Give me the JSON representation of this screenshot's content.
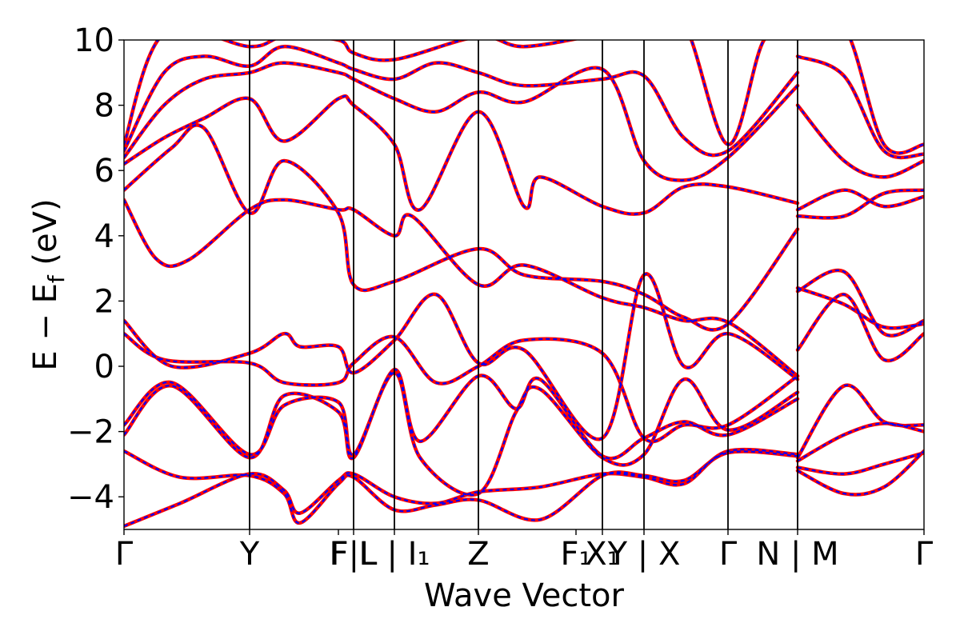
{
  "chart_data": {
    "type": "line",
    "title": "",
    "xlabel": "Wave Vector",
    "ylabel": "E − E_f (eV)",
    "ylabel_parts": {
      "main": "E  −  E",
      "sub": "f",
      "unit": " (eV)"
    },
    "ylim": [
      -5,
      10
    ],
    "xlim": [
      0,
      1
    ],
    "grid": false,
    "legend": "none",
    "y_ticks": [
      -4,
      -2,
      0,
      2,
      4,
      6,
      8,
      10
    ],
    "y_tick_labels": [
      "−4",
      "−2",
      "0",
      "2",
      "4",
      "6",
      "8",
      "10"
    ],
    "high_symmetry_points": [
      {
        "label": "Γ",
        "x": 0.0
      },
      {
        "label": "Y",
        "x": 0.157
      },
      {
        "label": "F",
        "x": 0.268
      },
      {
        "label": "F|L",
        "x": 0.287
      },
      {
        "label": "L | I₁",
        "x": 0.338
      },
      {
        "label": "Z",
        "x": 0.443
      },
      {
        "label": "F₁",
        "x": 0.565
      },
      {
        "label": "X₁",
        "x": 0.598
      },
      {
        "label": "Y | X",
        "x": 0.65
      },
      {
        "label": "Γ",
        "x": 0.755
      },
      {
        "label": "N | M",
        "x": 0.842
      },
      {
        "label": "Γ",
        "x": 1.0
      }
    ],
    "vertical_lines": [
      0.157,
      0.287,
      0.338,
      0.443,
      0.598,
      0.65,
      0.755,
      0.842
    ],
    "colors": {
      "series_a": "#ff0000",
      "series_b": "#0000ff"
    },
    "series": [
      {
        "line_style": "solid",
        "color": "#ff0000",
        "bands": [
          [
            [
              0,
              -4.9
            ],
            [
              0.07,
              -4.2
            ],
            [
              0.157,
              -3.3
            ],
            [
              0.2,
              -3.8
            ],
            [
              0.22,
              -4.5
            ],
            [
              0.268,
              -3.5
            ],
            [
              0.287,
              -3.3
            ],
            [
              0.338,
              -4.0
            ],
            [
              0.39,
              -4.2
            ],
            [
              0.443,
              -3.85
            ],
            [
              0.52,
              -3.7
            ],
            [
              0.598,
              -3.3
            ],
            [
              0.65,
              -3.4
            ],
            [
              0.7,
              -3.6
            ],
            [
              0.755,
              -2.6
            ],
            [
              0.842,
              -2.7
            ],
            [
              0.842,
              -3.2
            ],
            [
              0.9,
              -3.9
            ],
            [
              0.95,
              -3.7
            ],
            [
              1.0,
              -2.6
            ]
          ],
          [
            [
              0,
              -2.6
            ],
            [
              0.07,
              -3.4
            ],
            [
              0.157,
              -3.35
            ],
            [
              0.2,
              -3.9
            ],
            [
              0.22,
              -4.8
            ],
            [
              0.268,
              -3.6
            ],
            [
              0.287,
              -3.4
            ],
            [
              0.338,
              -4.4
            ],
            [
              0.39,
              -4.25
            ],
            [
              0.443,
              -4.1
            ],
            [
              0.52,
              -4.7
            ],
            [
              0.598,
              -3.35
            ],
            [
              0.65,
              -3.35
            ],
            [
              0.7,
              -3.5
            ],
            [
              0.755,
              -2.65
            ],
            [
              0.842,
              -2.75
            ],
            [
              0.842,
              -3.1
            ],
            [
              0.9,
              -3.3
            ],
            [
              0.95,
              -3.0
            ],
            [
              1.0,
              -2.65
            ]
          ],
          [
            [
              0,
              -2.1
            ],
            [
              0.06,
              -0.6
            ],
            [
              0.157,
              -2.8
            ],
            [
              0.2,
              -0.9
            ],
            [
              0.268,
              -1.4
            ],
            [
              0.287,
              -2.8
            ],
            [
              0.338,
              -0.1
            ],
            [
              0.37,
              -2.3
            ],
            [
              0.443,
              -0.3
            ],
            [
              0.49,
              -1.3
            ],
            [
              0.52,
              -0.4
            ],
            [
              0.598,
              -2.75
            ],
            [
              0.65,
              -2.2
            ],
            [
              0.7,
              -1.7
            ],
            [
              0.755,
              -2.1
            ],
            [
              0.842,
              -1.0
            ],
            [
              0.842,
              -2.9
            ],
            [
              0.9,
              -2.1
            ],
            [
              0.95,
              -1.75
            ],
            [
              1.0,
              -2.0
            ]
          ],
          [
            [
              0,
              -1.8
            ],
            [
              0.06,
              -0.5
            ],
            [
              0.157,
              -2.7
            ],
            [
              0.2,
              -1.2
            ],
            [
              0.268,
              -1.1
            ],
            [
              0.287,
              -2.7
            ],
            [
              0.338,
              -0.2
            ],
            [
              0.37,
              -2.8
            ],
            [
              0.443,
              -3.9
            ],
            [
              0.49,
              -1.4
            ],
            [
              0.52,
              -0.7
            ],
            [
              0.598,
              -2.8
            ],
            [
              0.65,
              -2.7
            ],
            [
              0.7,
              -0.4
            ],
            [
              0.755,
              -1.95
            ],
            [
              0.842,
              -0.8
            ],
            [
              0.842,
              -2.8
            ],
            [
              0.9,
              -0.6
            ],
            [
              0.95,
              -1.7
            ],
            [
              1.0,
              -1.8
            ]
          ],
          [
            [
              0,
              1.0
            ],
            [
              0.05,
              0.2
            ],
            [
              0.157,
              0.1
            ],
            [
              0.2,
              -0.5
            ],
            [
              0.268,
              -0.5
            ],
            [
              0.287,
              0.1
            ],
            [
              0.338,
              0.9
            ],
            [
              0.39,
              -0.5
            ],
            [
              0.443,
              0.0
            ],
            [
              0.5,
              0.8
            ],
            [
              0.598,
              0.4
            ],
            [
              0.65,
              -2.2
            ],
            [
              0.7,
              -1.8
            ],
            [
              0.755,
              -1.8
            ],
            [
              0.842,
              -0.3
            ],
            [
              0.842,
              0.5
            ],
            [
              0.9,
              2.2
            ],
            [
              0.95,
              0.2
            ],
            [
              1.0,
              1.0
            ]
          ],
          [
            [
              0,
              1.4
            ],
            [
              0.06,
              0.0
            ],
            [
              0.157,
              0.4
            ],
            [
              0.2,
              1.0
            ],
            [
              0.22,
              0.6
            ],
            [
              0.268,
              0.6
            ],
            [
              0.287,
              -0.2
            ],
            [
              0.338,
              0.8
            ],
            [
              0.39,
              2.2
            ],
            [
              0.443,
              0.1
            ],
            [
              0.5,
              0.5
            ],
            [
              0.598,
              -2.2
            ],
            [
              0.65,
              2.8
            ],
            [
              0.7,
              0.0
            ],
            [
              0.755,
              1.0
            ],
            [
              0.842,
              -0.4
            ],
            [
              0.842,
              2.3
            ],
            [
              0.9,
              2.9
            ],
            [
              0.95,
              1.0
            ],
            [
              1.0,
              1.4
            ]
          ],
          [
            [
              0,
              5.1
            ],
            [
              0.04,
              3.3
            ],
            [
              0.08,
              3.25
            ],
            [
              0.157,
              4.8
            ],
            [
              0.2,
              5.1
            ],
            [
              0.268,
              4.8
            ],
            [
              0.287,
              4.8
            ],
            [
              0.338,
              4.0
            ],
            [
              0.36,
              4.6
            ],
            [
              0.443,
              2.5
            ],
            [
              0.5,
              3.1
            ],
            [
              0.598,
              2.1
            ],
            [
              0.65,
              1.8
            ],
            [
              0.7,
              1.4
            ],
            [
              0.755,
              1.35
            ],
            [
              0.842,
              -0.3
            ],
            [
              0.842,
              2.4
            ],
            [
              0.9,
              1.9
            ],
            [
              0.95,
              1.2
            ],
            [
              1.0,
              1.3
            ]
          ],
          [
            [
              0,
              5.4
            ],
            [
              0.06,
              6.7
            ],
            [
              0.1,
              7.3
            ],
            [
              0.157,
              4.7
            ],
            [
              0.2,
              6.3
            ],
            [
              0.268,
              4.7
            ],
            [
              0.287,
              2.5
            ],
            [
              0.338,
              2.6
            ],
            [
              0.443,
              3.6
            ],
            [
              0.5,
              2.8
            ],
            [
              0.598,
              2.6
            ],
            [
              0.65,
              2.2
            ],
            [
              0.7,
              1.5
            ],
            [
              0.755,
              1.3
            ],
            [
              0.842,
              4.2
            ],
            [
              0.842,
              4.8
            ],
            [
              0.9,
              5.4
            ],
            [
              0.95,
              4.9
            ],
            [
              1.0,
              5.2
            ]
          ],
          [
            [
              0,
              6.2
            ],
            [
              0.05,
              7.0
            ],
            [
              0.1,
              7.6
            ],
            [
              0.157,
              8.2
            ],
            [
              0.2,
              6.9
            ],
            [
              0.268,
              8.2
            ],
            [
              0.287,
              8.0
            ],
            [
              0.338,
              6.8
            ],
            [
              0.37,
              4.8
            ],
            [
              0.443,
              7.8
            ],
            [
              0.5,
              4.9
            ],
            [
              0.52,
              5.8
            ],
            [
              0.598,
              4.9
            ],
            [
              0.65,
              4.7
            ],
            [
              0.7,
              5.5
            ],
            [
              0.755,
              5.5
            ],
            [
              0.842,
              5.0
            ],
            [
              0.842,
              4.6
            ],
            [
              0.9,
              4.6
            ],
            [
              0.95,
              5.3
            ],
            [
              1.0,
              5.4
            ]
          ],
          [
            [
              0,
              6.4
            ],
            [
              0.05,
              8.0
            ],
            [
              0.1,
              8.8
            ],
            [
              0.157,
              9.0
            ],
            [
              0.2,
              9.3
            ],
            [
              0.268,
              9.0
            ],
            [
              0.287,
              8.8
            ],
            [
              0.338,
              8.2
            ],
            [
              0.39,
              7.8
            ],
            [
              0.443,
              8.4
            ],
            [
              0.5,
              8.1
            ],
            [
              0.598,
              9.1
            ],
            [
              0.65,
              6.3
            ],
            [
              0.7,
              5.7
            ],
            [
              0.755,
              6.4
            ],
            [
              0.842,
              8.6
            ],
            [
              0.842,
              8.0
            ],
            [
              0.9,
              6.3
            ],
            [
              0.95,
              5.8
            ],
            [
              1.0,
              6.3
            ]
          ],
          [
            [
              0,
              6.6
            ],
            [
              0.05,
              9.0
            ],
            [
              0.1,
              9.5
            ],
            [
              0.157,
              9.2
            ],
            [
              0.2,
              9.8
            ],
            [
              0.268,
              9.3
            ],
            [
              0.287,
              9.1
            ],
            [
              0.338,
              8.8
            ],
            [
              0.39,
              9.3
            ],
            [
              0.443,
              9.0
            ],
            [
              0.5,
              8.6
            ],
            [
              0.598,
              8.8
            ],
            [
              0.65,
              8.9
            ],
            [
              0.7,
              7.0
            ],
            [
              0.755,
              6.6
            ],
            [
              0.842,
              9.0
            ],
            [
              0.842,
              9.5
            ],
            [
              0.9,
              8.9
            ],
            [
              0.95,
              6.6
            ],
            [
              1.0,
              6.5
            ]
          ],
          [
            [
              0,
              6.8
            ],
            [
              0.05,
              10.2
            ],
            [
              0.157,
              9.8
            ],
            [
              0.2,
              10.1
            ],
            [
              0.268,
              10.0
            ],
            [
              0.287,
              9.6
            ],
            [
              0.338,
              9.4
            ],
            [
              0.443,
              10.1
            ],
            [
              0.5,
              9.8
            ],
            [
              0.598,
              10.2
            ],
            [
              0.65,
              10.5
            ],
            [
              0.7,
              10.5
            ],
            [
              0.755,
              6.8
            ],
            [
              0.8,
              10.0
            ],
            [
              0.842,
              10.2
            ],
            [
              0.842,
              10.2
            ],
            [
              0.9,
              10.4
            ],
            [
              0.95,
              6.8
            ],
            [
              1.0,
              6.8
            ]
          ]
        ]
      },
      {
        "line_style": "dashed",
        "color": "#0000ff",
        "bands": "same_as_series_a"
      }
    ]
  }
}
